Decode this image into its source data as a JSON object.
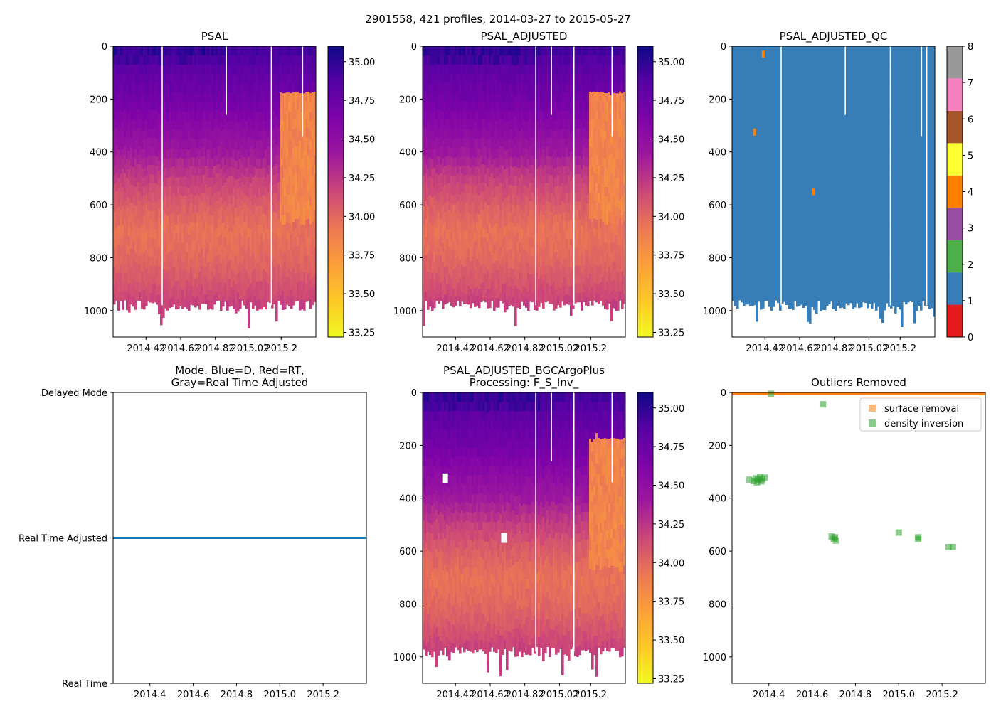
{
  "figure": {
    "suptitle": "2901558, 421 profiles, 2014-03-27 to 2015-05-27"
  },
  "colors": {
    "mode_line": "#1f77b4",
    "surface_removal": "#ff7f0e",
    "density_inversion": "#2ca02c",
    "qc_fill": "#377eb8"
  },
  "chart_data": [
    {
      "id": "psal",
      "type": "heatmap",
      "title": "PSAL",
      "xlabel": "",
      "ylabel": "",
      "xlim": [
        2014.23,
        2015.4
      ],
      "ylim": [
        1100,
        0
      ],
      "x_tick_values": [
        2014.42,
        2014.62,
        2014.82,
        2015.02,
        2015.2
      ],
      "x_tick_labels": [
        "2014.42",
        "2014.62",
        "2014.82",
        "2015.02",
        "2015.2"
      ],
      "y_tick_values": [
        0,
        200,
        400,
        600,
        800,
        1000
      ],
      "y_tick_labels": [
        "0",
        "200",
        "400",
        "600",
        "800",
        "1000"
      ],
      "colormap": "plasma_r",
      "colorbar": {
        "range": [
          33.22,
          35.1
        ],
        "tick_values": [
          33.25,
          33.5,
          33.75,
          34.0,
          34.25,
          34.5,
          34.75,
          35.0
        ],
        "tick_labels": [
          "33.25",
          "33.50",
          "33.75",
          "34.00",
          "34.25",
          "34.50",
          "34.75",
          "35.00"
        ]
      },
      "profiles": {
        "depth_levels": [
          0,
          100,
          200,
          300,
          400,
          500,
          600,
          700,
          800,
          900,
          980
        ],
        "salinity_by_depth": [
          34.95,
          34.8,
          34.7,
          34.55,
          34.4,
          34.2,
          34.05,
          33.95,
          34.0,
          34.1,
          34.2
        ],
        "bottom_depth": 980,
        "gap_x": [
          2014.51,
          2014.88,
          2015.14,
          2015.32
        ],
        "anomaly": {
          "x": [
            2015.18,
            2015.4
          ],
          "depth": [
            150,
            650
          ],
          "salinity": 33.85
        }
      }
    },
    {
      "id": "psal_adjusted",
      "type": "heatmap",
      "title": "PSAL_ADJUSTED",
      "xlabel": "",
      "ylabel": "",
      "xlim": [
        2014.23,
        2015.4
      ],
      "ylim": [
        1100,
        0
      ],
      "x_tick_values": [
        2014.42,
        2014.62,
        2014.82,
        2015.02,
        2015.2
      ],
      "x_tick_labels": [
        "2014.42",
        "2014.62",
        "2014.82",
        "2015.02",
        "2015.2"
      ],
      "y_tick_values": [
        0,
        200,
        400,
        600,
        800,
        1000
      ],
      "y_tick_labels": [
        "0",
        "200",
        "400",
        "600",
        "800",
        "1000"
      ],
      "colormap": "plasma_r",
      "colorbar": {
        "range": [
          33.22,
          35.1
        ],
        "tick_values": [
          33.25,
          33.5,
          33.75,
          34.0,
          34.25,
          34.5,
          34.75,
          35.0
        ],
        "tick_labels": [
          "33.25",
          "33.50",
          "33.75",
          "34.00",
          "34.25",
          "34.50",
          "34.75",
          "35.00"
        ]
      },
      "profiles": {
        "depth_levels": [
          0,
          100,
          200,
          300,
          400,
          500,
          600,
          700,
          800,
          900,
          980
        ],
        "salinity_by_depth": [
          34.95,
          34.8,
          34.7,
          34.55,
          34.4,
          34.2,
          34.05,
          33.95,
          34.0,
          34.1,
          34.2
        ],
        "bottom_depth": 980,
        "gap_x": [
          2014.88,
          2014.97,
          2015.1,
          2015.32
        ],
        "anomaly": {
          "x": [
            2015.18,
            2015.4
          ],
          "depth": [
            150,
            650
          ],
          "salinity": 33.85
        }
      }
    },
    {
      "id": "psal_adjusted_qc",
      "type": "heatmap",
      "title": "PSAL_ADJUSTED_QC",
      "xlabel": "",
      "ylabel": "",
      "xlim": [
        2014.23,
        2015.4
      ],
      "ylim": [
        1100,
        0
      ],
      "x_tick_values": [
        2014.42,
        2014.62,
        2014.82,
        2015.02,
        2015.2
      ],
      "x_tick_labels": [
        "2014.42",
        "2014.62",
        "2014.82",
        "2015.02",
        "2015.2"
      ],
      "y_tick_values": [
        0,
        200,
        400,
        600,
        800,
        1000
      ],
      "y_tick_labels": [
        "0",
        "200",
        "400",
        "600",
        "800",
        "1000"
      ],
      "qc_colorbar": {
        "range": [
          0,
          8
        ],
        "tick_values": [
          0,
          1,
          2,
          3,
          4,
          5,
          6,
          7,
          8
        ],
        "tick_labels": [
          "0",
          "1",
          "2",
          "3",
          "4",
          "5",
          "6",
          "7",
          "8"
        ],
        "class_colors": [
          "#e41a1c",
          "#377eb8",
          "#4daf4a",
          "#984ea3",
          "#ff7f00",
          "#ffff33",
          "#a65628",
          "#f781bf",
          "#999999"
        ]
      },
      "profiles": {
        "qc_value": 1,
        "bottom_depth": 980,
        "gap_x": [
          2014.51,
          2014.88,
          2015.14,
          2015.32,
          2015.35
        ],
        "flag4_points": [
          {
            "x": 2014.41,
            "depth": 30
          },
          {
            "x": 2014.36,
            "depth": 325
          },
          {
            "x": 2014.7,
            "depth": 550
          }
        ]
      }
    },
    {
      "id": "mode",
      "type": "line",
      "title": "Mode. Blue=D, Red=RT,",
      "title_line2": "Gray=Real Time Adjusted",
      "xlabel": "",
      "ylabel": "",
      "xlim": [
        2014.23,
        2015.4
      ],
      "x_tick_values": [
        2014.4,
        2014.6,
        2014.8,
        2015.0,
        2015.2
      ],
      "x_tick_labels": [
        "2014.4",
        "2014.6",
        "2014.8",
        "2015.0",
        "2015.2"
      ],
      "y_tick_values": [
        0,
        1,
        2
      ],
      "y_tick_labels": [
        "Real Time",
        "Real Time Adjusted",
        "Delayed Mode"
      ],
      "ylim": [
        0,
        2
      ],
      "series": [
        {
          "name": "mode",
          "x": [
            2014.23,
            2015.4
          ],
          "values": [
            1,
            1
          ]
        }
      ]
    },
    {
      "id": "psal_bgc",
      "type": "heatmap",
      "title": "PSAL_ADJUSTED_BGCArgoPlus",
      "title_line2": "Processing: F_S_Inv_",
      "xlabel": "",
      "ylabel": "",
      "xlim": [
        2014.23,
        2015.4
      ],
      "ylim": [
        1100,
        0
      ],
      "x_tick_values": [
        2014.42,
        2014.62,
        2014.82,
        2015.02,
        2015.2
      ],
      "x_tick_labels": [
        "2014.42",
        "2014.62",
        "2014.82",
        "2015.02",
        "2015.2"
      ],
      "y_tick_values": [
        0,
        200,
        400,
        600,
        800,
        1000
      ],
      "y_tick_labels": [
        "0",
        "200",
        "400",
        "600",
        "800",
        "1000"
      ],
      "colormap": "plasma_r",
      "colorbar": {
        "range": [
          33.22,
          35.1
        ],
        "tick_values": [
          33.25,
          33.5,
          33.75,
          34.0,
          34.25,
          34.5,
          34.75,
          35.0
        ],
        "tick_labels": [
          "33.25",
          "33.50",
          "33.75",
          "34.00",
          "34.25",
          "34.50",
          "34.75",
          "35.00"
        ]
      },
      "profiles": {
        "depth_levels": [
          0,
          100,
          200,
          300,
          400,
          500,
          600,
          700,
          800,
          900,
          980
        ],
        "salinity_by_depth": [
          34.95,
          34.8,
          34.7,
          34.55,
          34.4,
          34.2,
          34.05,
          33.95,
          34.0,
          34.1,
          34.2
        ],
        "bottom_depth": 980,
        "gap_x": [
          2014.88,
          2014.97,
          2015.1,
          2015.32
        ],
        "anomaly": {
          "x": [
            2015.18,
            2015.4
          ],
          "depth": [
            150,
            650
          ],
          "salinity": 33.85
        },
        "removed_points": [
          {
            "x": 2014.36,
            "depth": 325
          },
          {
            "x": 2014.7,
            "depth": 550
          }
        ]
      }
    },
    {
      "id": "outliers",
      "type": "scatter",
      "title": "Outliers Removed",
      "xlabel": "",
      "ylabel": "",
      "xlim": [
        2014.23,
        2015.4
      ],
      "ylim": [
        1100,
        0
      ],
      "x_tick_values": [
        2014.4,
        2014.6,
        2014.8,
        2015.0,
        2015.2
      ],
      "x_tick_labels": [
        "2014.4",
        "2014.6",
        "2014.8",
        "2015.0",
        "2015.2"
      ],
      "y_tick_values": [
        0,
        200,
        400,
        600,
        800,
        1000
      ],
      "y_tick_labels": [
        "0",
        "200",
        "400",
        "600",
        "800",
        "1000"
      ],
      "legend_position": "top-right",
      "series": [
        {
          "name": "surface removal",
          "color": "#ff7f0e",
          "band_depth": [
            0,
            8
          ],
          "x": [
            2014.23,
            2015.4
          ]
        },
        {
          "name": "density inversion",
          "color": "#2ca02c",
          "points": [
            {
              "x": 2014.31,
              "y": 330
            },
            {
              "x": 2014.33,
              "y": 335
            },
            {
              "x": 2014.34,
              "y": 325
            },
            {
              "x": 2014.35,
              "y": 330
            },
            {
              "x": 2014.36,
              "y": 320
            },
            {
              "x": 2014.37,
              "y": 328
            },
            {
              "x": 2014.38,
              "y": 322
            },
            {
              "x": 2014.345,
              "y": 340
            },
            {
              "x": 2014.365,
              "y": 336
            },
            {
              "x": 2014.41,
              "y": 5
            },
            {
              "x": 2014.65,
              "y": 45
            },
            {
              "x": 2014.69,
              "y": 545
            },
            {
              "x": 2014.7,
              "y": 555
            },
            {
              "x": 2014.71,
              "y": 560
            },
            {
              "x": 2014.705,
              "y": 548
            },
            {
              "x": 2015.0,
              "y": 530
            },
            {
              "x": 2015.09,
              "y": 548
            },
            {
              "x": 2015.09,
              "y": 555
            },
            {
              "x": 2015.23,
              "y": 585
            },
            {
              "x": 2015.25,
              "y": 585
            }
          ]
        }
      ]
    }
  ]
}
